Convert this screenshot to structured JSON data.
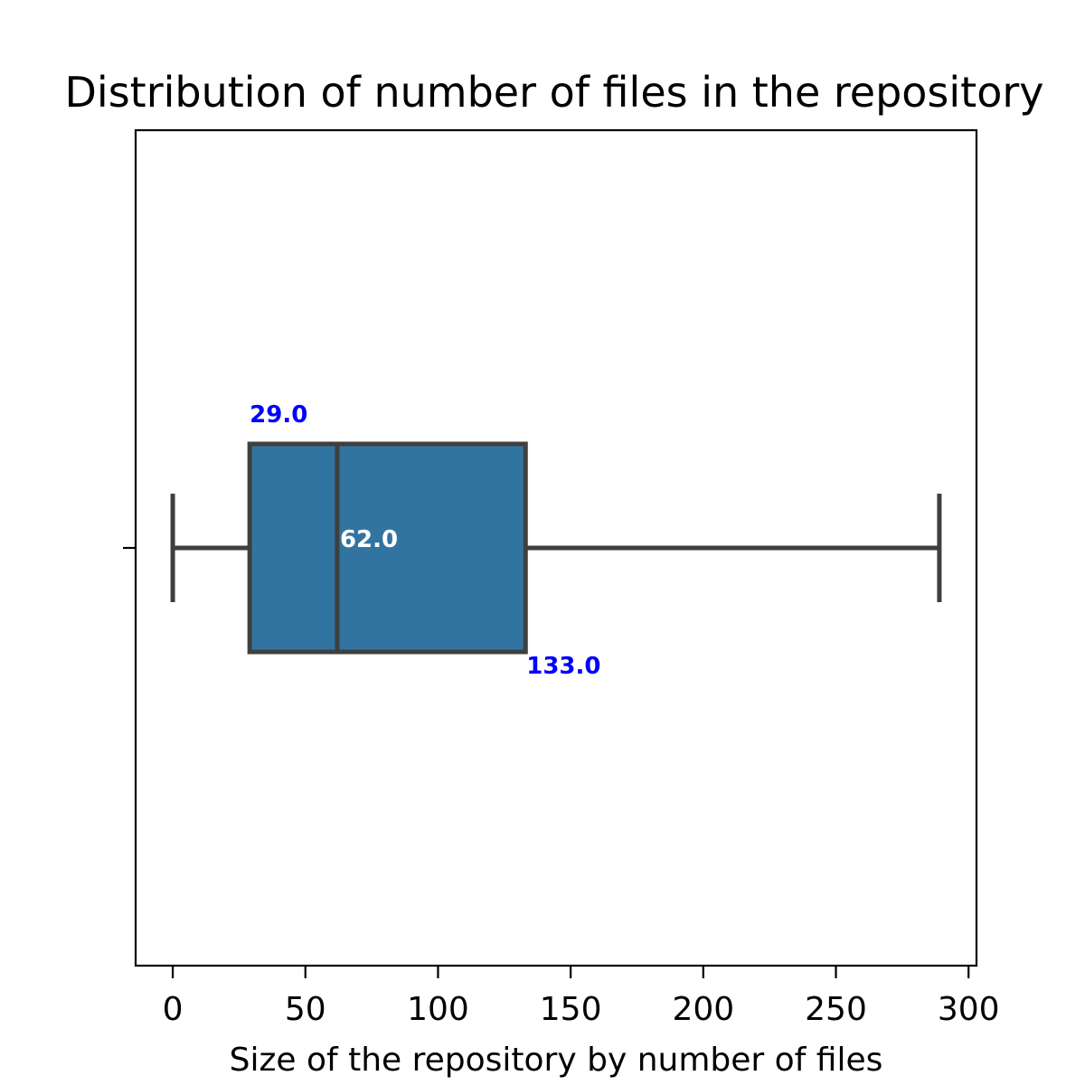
{
  "chart_data": {
    "type": "boxplot",
    "title": "Distribution of number of files in the repository",
    "xlabel": "Size of the repository by number of files",
    "ylabel": "",
    "xlim": [
      -14,
      303
    ],
    "xticks": [
      0,
      50,
      100,
      150,
      200,
      250,
      300
    ],
    "xtick_labels": [
      "0",
      "50",
      "100",
      "150",
      "200",
      "250",
      "300"
    ],
    "grid": false,
    "box": {
      "whisker_low": 0,
      "q1": 29,
      "median": 62,
      "q3": 133,
      "whisker_high": 289
    },
    "annotations": {
      "q1_label": "29.0",
      "median_label": "62.0",
      "q3_label": "133.0"
    },
    "colors": {
      "box_fill": "#3274a1",
      "box_edge": "#3f3f3f",
      "q1_label": "#0000ff",
      "median_label": "#ffffff",
      "q3_label": "#0000ff"
    }
  }
}
